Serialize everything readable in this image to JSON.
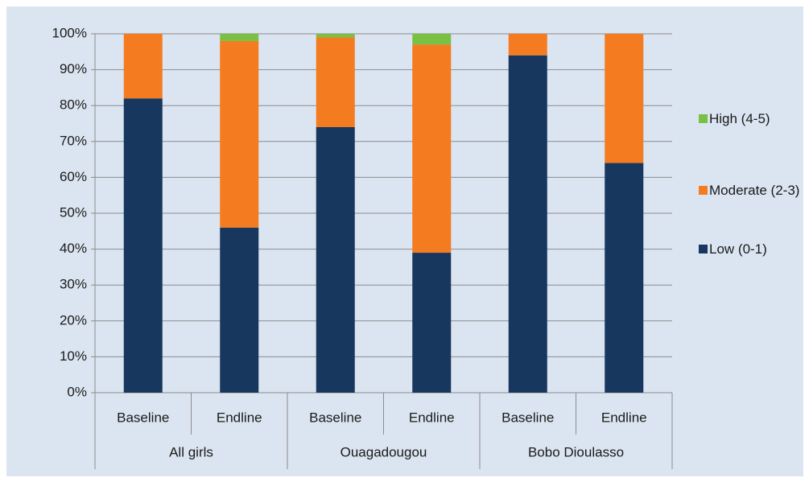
{
  "chart_data": {
    "type": "bar",
    "stacked": true,
    "categories": [
      "Baseline",
      "Endline",
      "Baseline",
      "Endline",
      "Baseline",
      "Endline"
    ],
    "groups": [
      "All girls",
      "Ouagadougou",
      "Bobo Dioulasso"
    ],
    "series": [
      {
        "name": "Low (0-1)",
        "color": "#17375e",
        "values": [
          82,
          46,
          74,
          39,
          94,
          64
        ]
      },
      {
        "name": "Moderate (2-3)",
        "color": "#f47b20",
        "values": [
          18,
          52,
          25,
          58,
          6,
          36
        ]
      },
      {
        "name": "High (4-5)",
        "color": "#7ac143",
        "values": [
          0,
          2,
          1,
          3,
          0,
          0
        ]
      }
    ],
    "ylim": [
      0,
      100
    ],
    "yticks": [
      {
        "value": 0,
        "label": "0%"
      },
      {
        "value": 10,
        "label": "10%"
      },
      {
        "value": 20,
        "label": "20%"
      },
      {
        "value": 30,
        "label": "30%"
      },
      {
        "value": 40,
        "label": "40%"
      },
      {
        "value": 50,
        "label": "50%"
      },
      {
        "value": 60,
        "label": "60%"
      },
      {
        "value": 70,
        "label": "70%"
      },
      {
        "value": 80,
        "label": "80%"
      },
      {
        "value": 90,
        "label": "90%"
      },
      {
        "value": 100,
        "label": "100%"
      }
    ],
    "grid": true,
    "legend": "right"
  }
}
